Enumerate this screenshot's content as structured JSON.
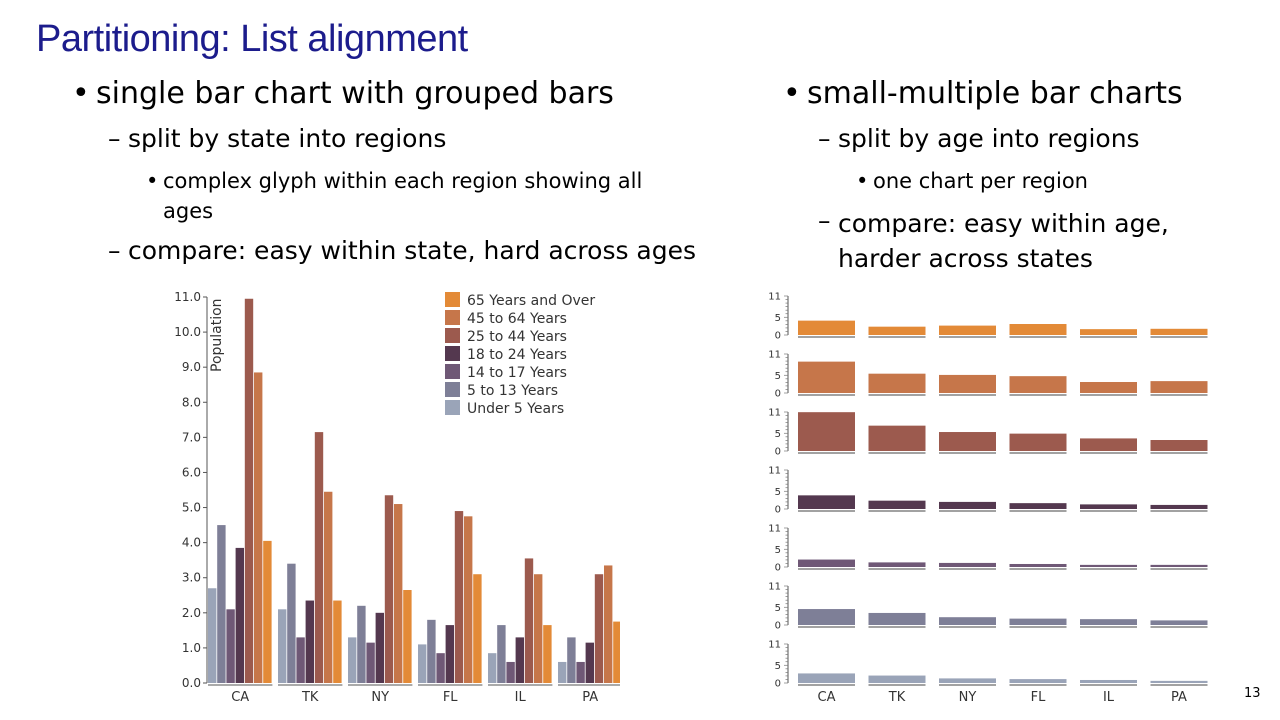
{
  "slide": {
    "title": "Partitioning: List alignment",
    "page_number": "13",
    "left": {
      "bullet": "single bar chart with grouped bars",
      "sub1": "split by state into regions",
      "sub1_detail": "complex glyph within each region showing all ages",
      "sub2": "compare: easy within state, hard across ages"
    },
    "right": {
      "bullet": "small-multiple bar charts",
      "sub1": "split by age into regions",
      "sub1_detail": "one chart per region",
      "sub2": "compare: easy within age, harder across states"
    }
  },
  "chart_data": [
    {
      "type": "bar",
      "title": "",
      "xlabel": "",
      "ylabel": "Population",
      "ylim": [
        0,
        11
      ],
      "yticks": [
        "0.0",
        "1.0",
        "2.0",
        "3.0",
        "4.0",
        "5.0",
        "6.0",
        "7.0",
        "8.0",
        "9.0",
        "10.0",
        "11.0"
      ],
      "categories": [
        "CA",
        "TK",
        "NY",
        "FL",
        "IL",
        "PA"
      ],
      "legend_position": "top-right",
      "series": [
        {
          "name": "Under 5 Years",
          "color": "#9aa4b8",
          "values": [
            2.7,
            2.1,
            1.3,
            1.1,
            0.85,
            0.6
          ]
        },
        {
          "name": "5 to 13 Years",
          "color": "#7e7f97",
          "values": [
            4.5,
            3.4,
            2.2,
            1.8,
            1.65,
            1.3
          ]
        },
        {
          "name": "14 to 17 Years",
          "color": "#6f5876",
          "values": [
            2.1,
            1.3,
            1.15,
            0.85,
            0.6,
            0.6
          ]
        },
        {
          "name": "18 to 24 Years",
          "color": "#54384f",
          "values": [
            3.85,
            2.35,
            2.0,
            1.65,
            1.3,
            1.15
          ]
        },
        {
          "name": "25 to 44 Years",
          "color": "#9c5a4e",
          "values": [
            10.95,
            7.15,
            5.35,
            4.9,
            3.55,
            3.1
          ]
        },
        {
          "name": "45 to 64 Years",
          "color": "#c6764a",
          "values": [
            8.85,
            5.45,
            5.1,
            4.75,
            3.1,
            3.35
          ]
        },
        {
          "name": "65 Years and Over",
          "color": "#e38a37",
          "values": [
            4.05,
            2.35,
            2.65,
            3.1,
            1.65,
            1.75
          ]
        }
      ]
    },
    {
      "type": "bar",
      "title": "",
      "xlabel": "",
      "ylabel": "",
      "ylim": [
        0,
        11
      ],
      "yticks": [
        "0",
        "5",
        "11"
      ],
      "categories": [
        "CA",
        "TK",
        "NY",
        "FL",
        "IL",
        "PA"
      ],
      "panels": [
        {
          "name": "65 Years and Over",
          "color": "#e38a37",
          "values": [
            4.05,
            2.35,
            2.65,
            3.1,
            1.65,
            1.75
          ]
        },
        {
          "name": "45 to 64 Years",
          "color": "#c6764a",
          "values": [
            8.85,
            5.45,
            5.1,
            4.75,
            3.1,
            3.35
          ]
        },
        {
          "name": "25 to 44 Years",
          "color": "#9c5a4e",
          "values": [
            10.95,
            7.15,
            5.35,
            4.9,
            3.55,
            3.1
          ]
        },
        {
          "name": "18 to 24 Years",
          "color": "#54384f",
          "values": [
            3.85,
            2.35,
            2.0,
            1.65,
            1.3,
            1.15
          ]
        },
        {
          "name": "14 to 17 Years",
          "color": "#6f5876",
          "values": [
            2.1,
            1.3,
            1.15,
            0.85,
            0.6,
            0.6
          ]
        },
        {
          "name": "5 to 13 Years",
          "color": "#7e7f97",
          "values": [
            4.5,
            3.4,
            2.2,
            1.8,
            1.65,
            1.3
          ]
        },
        {
          "name": "Under 5 Years",
          "color": "#9aa4b8",
          "values": [
            2.7,
            2.1,
            1.3,
            1.1,
            0.85,
            0.6
          ]
        }
      ]
    }
  ]
}
